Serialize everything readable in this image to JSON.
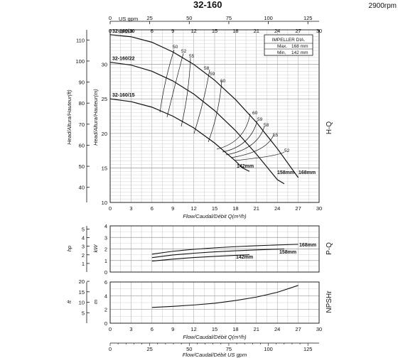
{
  "header": {
    "model": "32-160",
    "speed": "2900rpm"
  },
  "colors": {
    "line": "#111111",
    "grid": "#9a9a9a",
    "minor_grid": "#c8c8c8"
  },
  "chart_data": [
    {
      "id": "hq",
      "type": "line",
      "title": "32-160",
      "side_label": "H-Q",
      "x": {
        "ticks": [
          0,
          3,
          6,
          9,
          12,
          15,
          18,
          21,
          24,
          27,
          30
        ],
        "label": "Flow/Caudal/Débit Q(m³/h)",
        "range": [
          0,
          30
        ]
      },
      "top_axes": {
        "us_gpm": {
          "label": "US gpm",
          "ticks": [
            0,
            25,
            50,
            75,
            100,
            125
          ]
        },
        "m3h": {
          "label": "m³/h",
          "ticks": [
            0,
            3,
            6,
            9,
            12,
            15,
            18,
            21,
            24,
            27,
            30
          ]
        }
      },
      "y_m": {
        "label": "Head/Altura/Hauteur(m)",
        "ticks": [
          10,
          15,
          20,
          25,
          30
        ],
        "range": [
          10,
          35
        ]
      },
      "y_ft": {
        "label": "Head/Altura/Hauteur(ft)",
        "ticks": [
          40,
          50,
          60,
          70,
          80,
          90,
          100,
          110
        ]
      },
      "impeller_box": {
        "title": "IMPELLER DIA.",
        "max_label": "Max.",
        "max_value": "168 mm",
        "min_label": "Min.",
        "min_value": "142 mm"
      },
      "series": [
        {
          "name": "32-160/30",
          "diam": "168mm",
          "x": [
            0,
            3,
            6,
            9,
            12,
            15,
            18,
            21,
            24,
            27
          ],
          "y": [
            34.3,
            34.0,
            33.2,
            31.8,
            30.0,
            27.7,
            24.9,
            21.6,
            17.8,
            13.6
          ]
        },
        {
          "name": "32-160/22",
          "diam": "158mm",
          "x": [
            0,
            3,
            6,
            9,
            12,
            15,
            18,
            21,
            24,
            25
          ],
          "y": [
            30.3,
            29.9,
            29.0,
            27.6,
            25.7,
            23.3,
            20.4,
            17.0,
            13.3,
            12.7
          ]
        },
        {
          "name": "32-160/15",
          "diam": "142mm",
          "x": [
            0,
            3,
            6,
            9,
            12,
            15,
            18,
            19,
            20
          ],
          "y": [
            25.0,
            24.6,
            23.8,
            22.5,
            20.8,
            18.6,
            16.0,
            15.0,
            14.5
          ]
        }
      ],
      "efficiency_labels": [
        "50",
        "52",
        "55",
        "58",
        "59",
        "60",
        "60",
        "59",
        "58",
        "55",
        "52"
      ]
    },
    {
      "id": "pq",
      "type": "line",
      "side_label": "P-Q",
      "y_kw": {
        "label": "kW",
        "ticks": [
          0,
          1,
          2,
          3,
          4
        ],
        "range": [
          0,
          4
        ]
      },
      "y_hp": {
        "label": "hp",
        "ticks": [
          1,
          2,
          3,
          4,
          5
        ]
      },
      "x": {
        "ticks": [
          0,
          3,
          6,
          9,
          12,
          15,
          18,
          21,
          24,
          27,
          30
        ],
        "range": [
          0,
          30
        ]
      },
      "series": [
        {
          "name": "168mm",
          "x": [
            6,
            9,
            12,
            15,
            18,
            21,
            24,
            27
          ],
          "y": [
            1.55,
            1.8,
            1.97,
            2.1,
            2.2,
            2.28,
            2.35,
            2.4
          ]
        },
        {
          "name": "158mm",
          "x": [
            6,
            9,
            12,
            15,
            18,
            21,
            24,
            25
          ],
          "y": [
            1.25,
            1.48,
            1.63,
            1.75,
            1.84,
            1.92,
            1.98,
            2.0
          ]
        },
        {
          "name": "142mm",
          "x": [
            6,
            9,
            12,
            15,
            18,
            20
          ],
          "y": [
            0.95,
            1.12,
            1.26,
            1.36,
            1.45,
            1.5
          ]
        }
      ]
    },
    {
      "id": "npsh",
      "type": "line",
      "side_label": "NPSHr",
      "y_m": {
        "label": "m",
        "ticks": [
          0,
          2,
          4,
          6
        ],
        "range": [
          0,
          6
        ]
      },
      "y_ft": {
        "label": "ft",
        "ticks": [
          5,
          10,
          15,
          20
        ]
      },
      "x": {
        "ticks": [
          0,
          3,
          6,
          9,
          12,
          15,
          18,
          21,
          24,
          27,
          30
        ],
        "label": "Flow/Caudal/Débit Q(m³/h)",
        "range": [
          0,
          30
        ]
      },
      "series": [
        {
          "name": "NPSHr",
          "x": [
            6,
            9,
            12,
            15,
            18,
            21,
            24,
            27
          ],
          "y": [
            2.3,
            2.45,
            2.65,
            2.9,
            3.3,
            3.8,
            4.5,
            5.5
          ]
        }
      ]
    }
  ],
  "bottom_axis": {
    "label": "Flow/Caudal/Débit  US gpm",
    "ticks": [
      0,
      25,
      50,
      75,
      100,
      125
    ]
  }
}
